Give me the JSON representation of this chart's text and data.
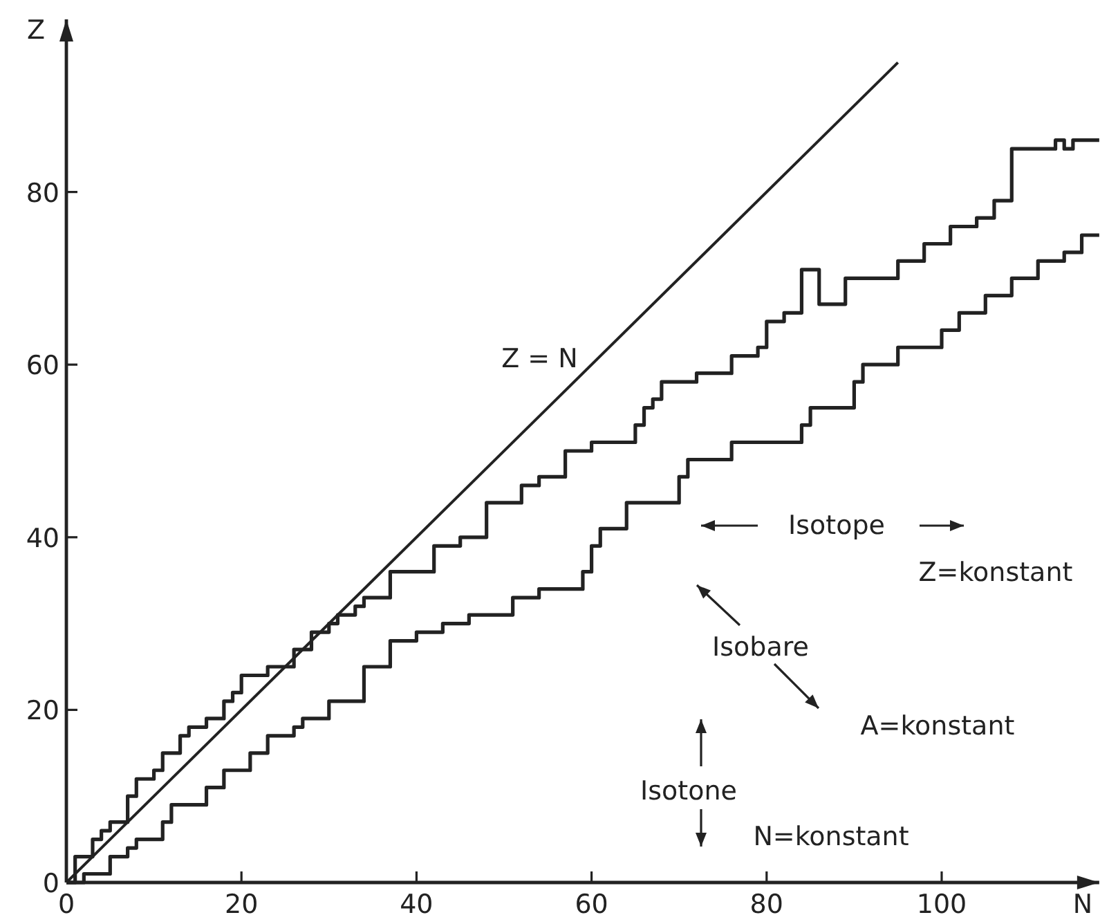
{
  "chart_data": {
    "type": "line",
    "xlabel": "N",
    "ylabel": "Z",
    "xlim": [
      0,
      118
    ],
    "ylim": [
      0,
      100
    ],
    "xticks": [
      0,
      20,
      40,
      60,
      80,
      100
    ],
    "yticks": [
      0,
      20,
      40,
      60,
      80
    ],
    "series": [
      {
        "color": "#222222",
        "x": [
          0,
          95
        ],
        "values": [
          0,
          95
        ]
      },
      {
        "type": "step",
        "color": "#222222",
        "x": [
          0,
          1,
          3,
          4,
          5,
          7,
          8,
          10,
          11,
          13,
          14,
          16,
          18,
          19,
          20,
          23,
          26,
          28,
          30,
          31,
          33,
          34,
          37,
          42,
          45,
          48,
          52,
          54,
          57,
          60,
          65,
          66,
          67,
          68,
          72,
          76,
          79,
          80,
          82,
          84,
          86,
          89,
          95,
          98,
          101,
          104,
          106,
          108,
          113,
          114,
          115,
          118
        ],
        "values": [
          0,
          3,
          5,
          6,
          7,
          10,
          12,
          13,
          15,
          17,
          18,
          19,
          21,
          22,
          24,
          25,
          27,
          29,
          30,
          31,
          32,
          33,
          36,
          39,
          40,
          44,
          46,
          47,
          50,
          51,
          53,
          55,
          56,
          58,
          59,
          61,
          62,
          65,
          66,
          71,
          67,
          70,
          72,
          74,
          76,
          77,
          79,
          85,
          86,
          85,
          86,
          86
        ]
      },
      {
        "type": "step",
        "color": "#222222",
        "x": [
          0,
          2,
          5,
          7,
          8,
          11,
          12,
          16,
          18,
          21,
          23,
          26,
          27,
          30,
          34,
          37,
          40,
          43,
          46,
          51,
          54,
          59,
          60,
          61,
          64,
          70,
          71,
          76,
          84,
          85,
          90,
          91,
          95,
          100,
          102,
          105,
          108,
          111,
          114,
          116,
          118
        ],
        "values": [
          0,
          1,
          3,
          4,
          5,
          7,
          9,
          11,
          13,
          15,
          17,
          18,
          19,
          21,
          25,
          28,
          29,
          30,
          31,
          33,
          34,
          36,
          39,
          41,
          44,
          47,
          49,
          51,
          53,
          55,
          58,
          60,
          62,
          64,
          66,
          68,
          70,
          72,
          73,
          75,
          75
        ]
      }
    ],
    "annotations": [
      {
        "text": "Z = N",
        "x": 60,
        "y": 60
      },
      "Isotope",
      "Z=konstant",
      "Isobare",
      "A=konstant",
      "Isotone",
      "N=konstant"
    ]
  }
}
